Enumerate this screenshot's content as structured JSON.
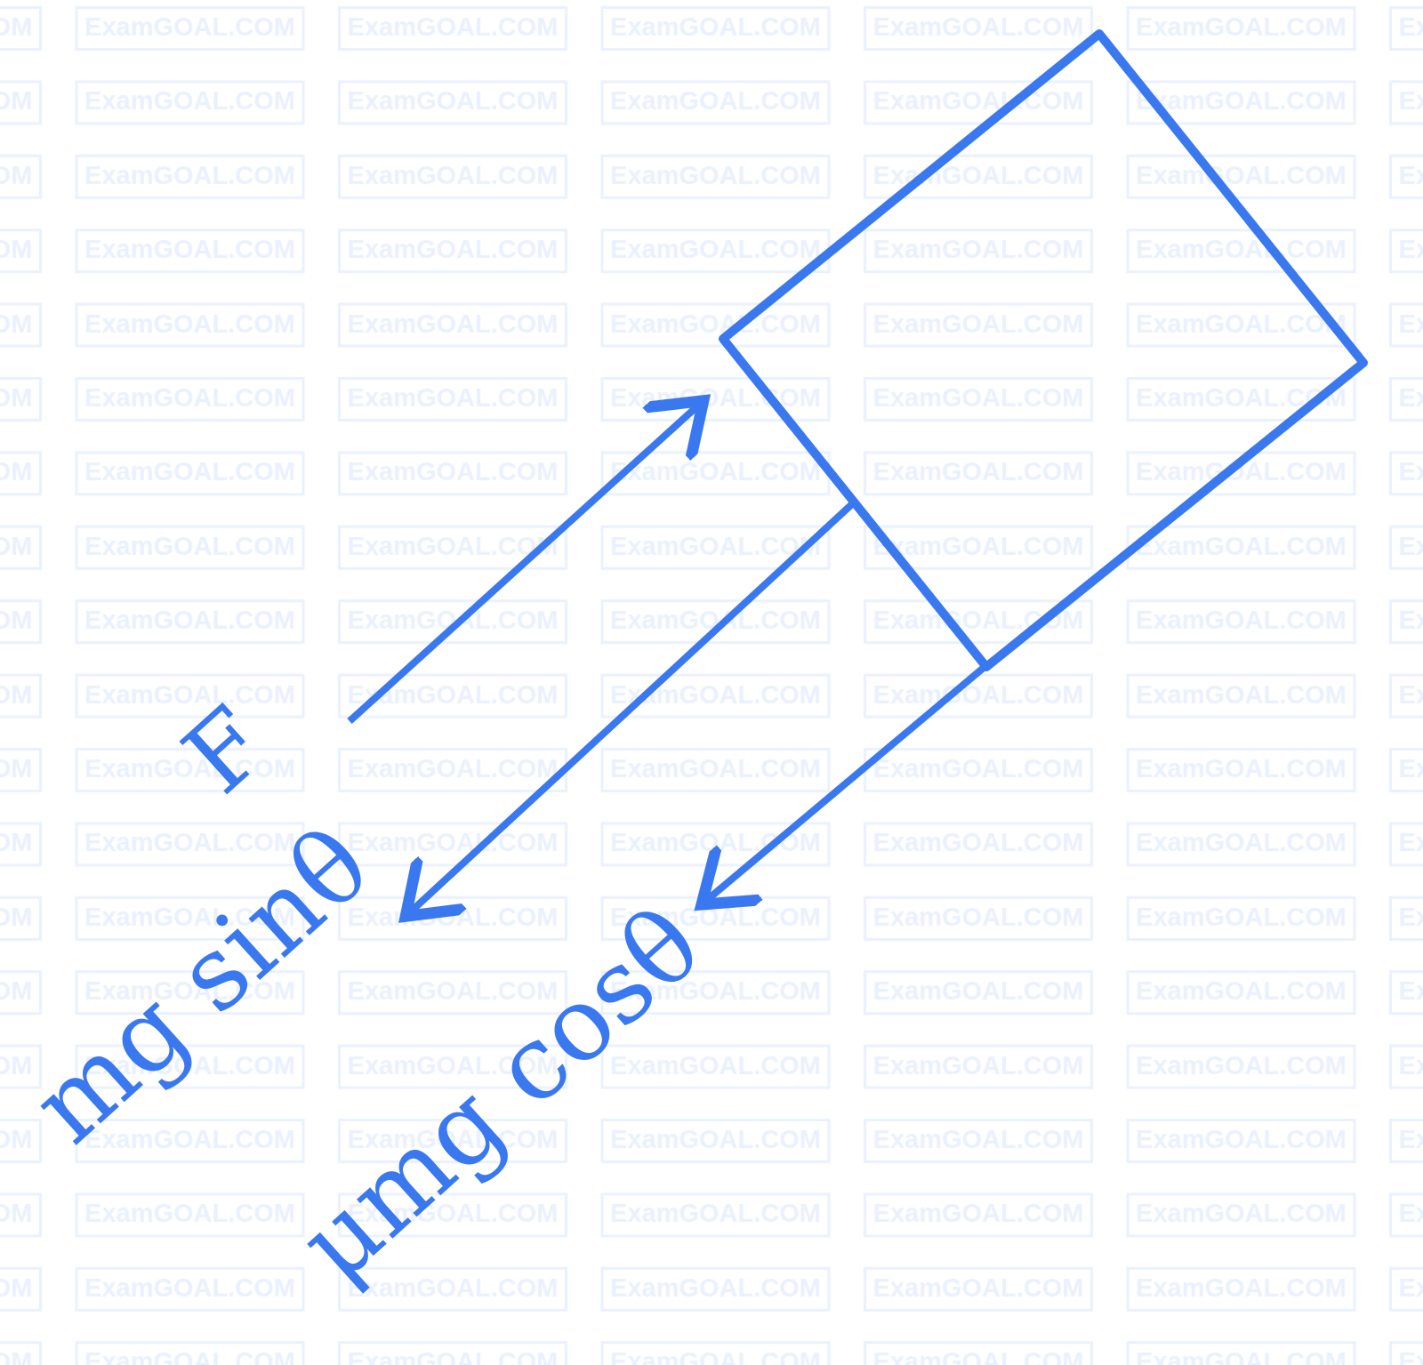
{
  "watermark": {
    "text": "ExamGOAL.COM",
    "color": "#eaf0fd"
  },
  "diagram": {
    "stroke_color": "#3a78f0",
    "labels": {
      "applied_force": "F",
      "gravity_component": "mg sinθ",
      "friction": "μmg cosθ"
    }
  }
}
